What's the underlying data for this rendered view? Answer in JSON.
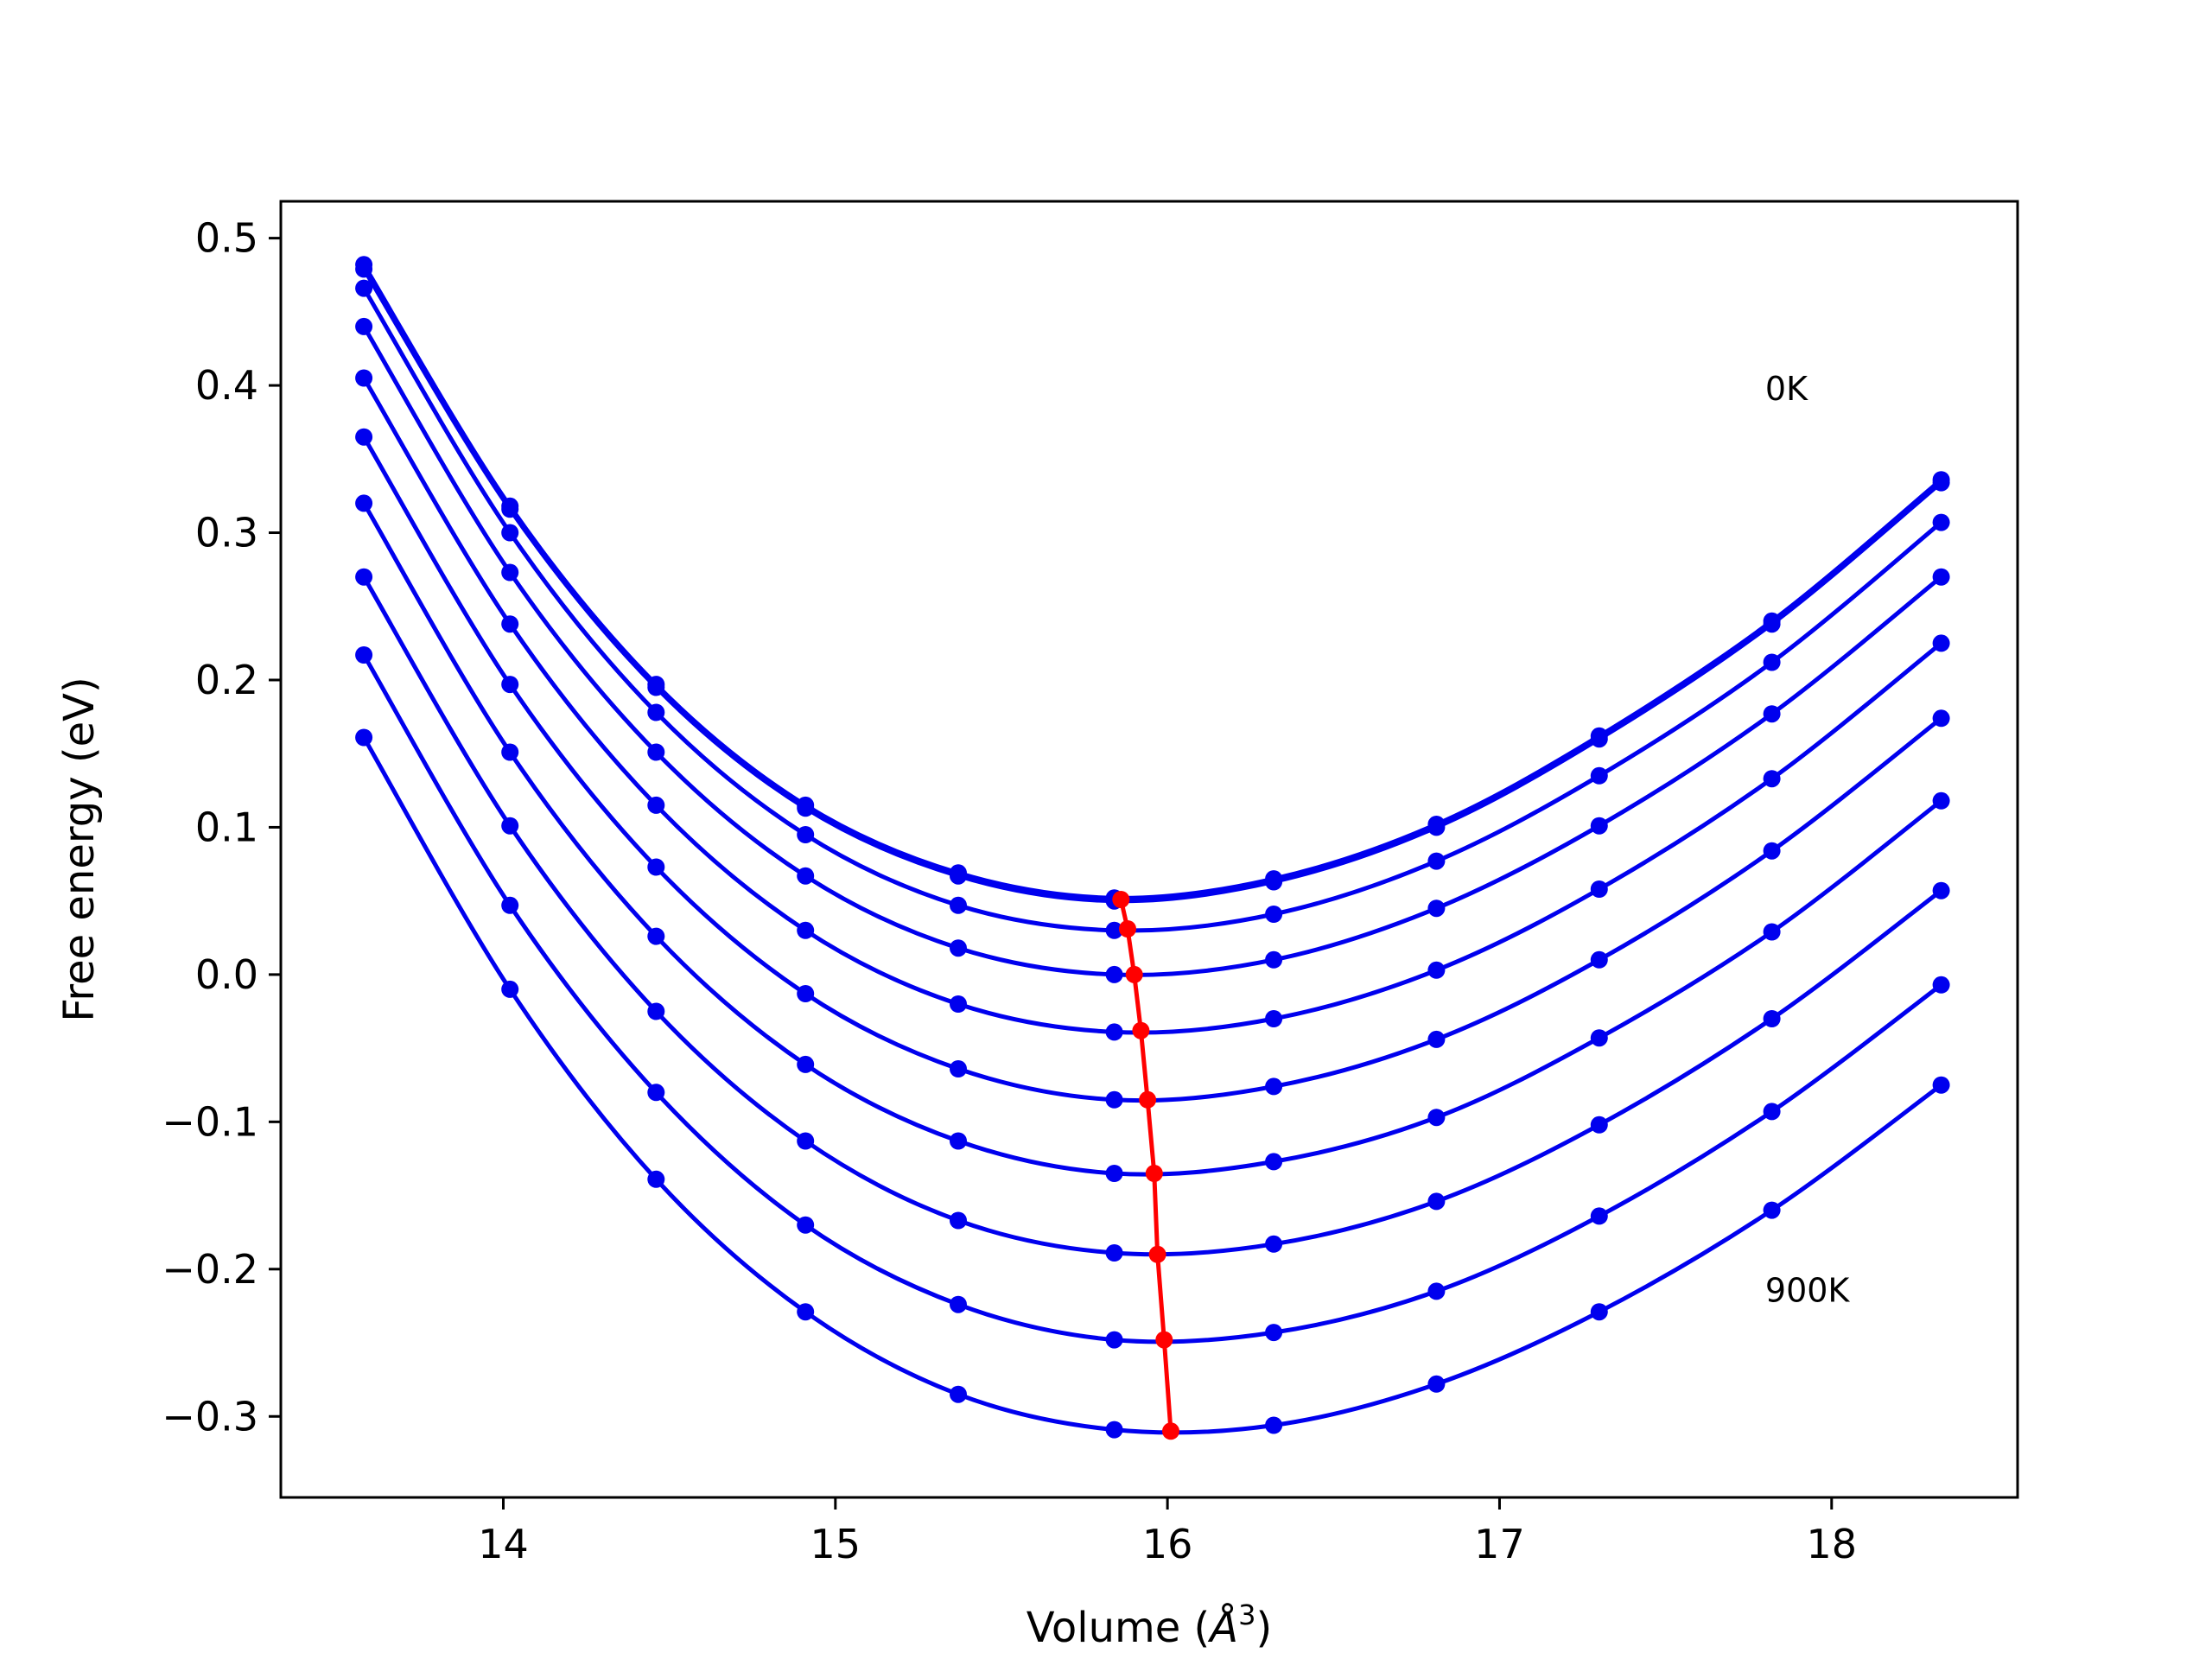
{
  "chart_data": {
    "type": "line",
    "title": "",
    "xlabel": "Volume (Å³)",
    "xlabel_base": "Volume (",
    "xlabel_unit": "Å",
    "xlabel_exp": "3",
    "xlabel_close": ")",
    "ylabel": "Free energy (eV)",
    "xlim": [
      13.33,
      18.56
    ],
    "ylim": [
      -0.355,
      0.525
    ],
    "xticks": [
      14,
      15,
      16,
      17,
      18
    ],
    "xtick_labels": [
      "14",
      "15",
      "16",
      "17",
      "18"
    ],
    "yticks": [
      0.5,
      0.4,
      0.3,
      0.2,
      0.1,
      0.0,
      -0.1,
      -0.2,
      -0.3
    ],
    "ytick_labels": [
      "0.5",
      "0.4",
      "0.3",
      "0.2",
      "0.1",
      "0.0",
      "−0.1",
      "−0.2",
      "−0.3"
    ],
    "grid": false,
    "annotations": [
      {
        "text": "0K",
        "x": 17.8,
        "y": 0.39
      },
      {
        "text": "900K",
        "x": 17.8,
        "y": -0.222
      }
    ],
    "x": [
      13.58,
      14.02,
      14.46,
      14.91,
      15.37,
      15.84,
      16.32,
      16.81,
      17.3,
      17.82,
      18.33
    ],
    "series": [
      {
        "color": "#0000ee",
        "values": [
          0.482,
          0.318,
          0.197,
          0.115,
          0.069,
          0.052,
          0.065,
          0.102,
          0.162,
          0.24,
          0.336
        ]
      },
      {
        "color": "#0000ee",
        "values": [
          0.479,
          0.316,
          0.195,
          0.113,
          0.067,
          0.05,
          0.063,
          0.1,
          0.16,
          0.238,
          0.334
        ]
      },
      {
        "color": "#0000ee",
        "values": [
          0.466,
          0.3,
          0.178,
          0.095,
          0.047,
          0.03,
          0.041,
          0.077,
          0.135,
          0.212,
          0.307
        ]
      },
      {
        "color": "#0000ee",
        "values": [
          0.44,
          0.273,
          0.151,
          0.067,
          0.018,
          0.0,
          0.01,
          0.045,
          0.101,
          0.177,
          0.27
        ]
      },
      {
        "color": "#0000ee",
        "values": [
          0.405,
          0.238,
          0.115,
          0.03,
          -0.02,
          -0.039,
          -0.03,
          0.003,
          0.058,
          0.133,
          0.225
        ]
      },
      {
        "color": "#0000ee",
        "values": [
          0.365,
          0.197,
          0.073,
          -0.013,
          -0.064,
          -0.085,
          -0.076,
          -0.044,
          0.01,
          0.084,
          0.174
        ]
      },
      {
        "color": "#0000ee",
        "values": [
          0.32,
          0.151,
          0.026,
          -0.061,
          -0.113,
          -0.135,
          -0.127,
          -0.097,
          -0.043,
          0.029,
          0.118
        ]
      },
      {
        "color": "#0000ee",
        "values": [
          0.27,
          0.101,
          -0.025,
          -0.113,
          -0.167,
          -0.189,
          -0.183,
          -0.154,
          -0.102,
          -0.03,
          0.057
        ]
      },
      {
        "color": "#0000ee",
        "values": [
          0.217,
          0.047,
          -0.08,
          -0.17,
          -0.224,
          -0.248,
          -0.243,
          -0.215,
          -0.164,
          -0.093,
          -0.007
        ]
      },
      {
        "color": "#0000ee",
        "values": [
          0.161,
          -0.01,
          -0.139,
          -0.229,
          -0.285,
          -0.309,
          -0.306,
          -0.278,
          -0.229,
          -0.16,
          -0.075
        ]
      }
    ],
    "minima": {
      "color": "#ff0000",
      "x": [
        15.86,
        15.88,
        15.9,
        15.92,
        15.94,
        15.96,
        15.97,
        15.99,
        16.01
      ],
      "y": [
        0.051,
        0.031,
        0.0,
        -0.038,
        -0.085,
        -0.135,
        -0.19,
        -0.248,
        -0.31
      ]
    }
  }
}
